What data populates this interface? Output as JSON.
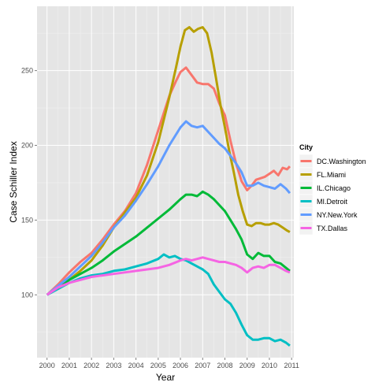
{
  "chart_data": {
    "type": "line",
    "xlabel": "Year",
    "ylabel": "Case Schiller Index",
    "xlim": [
      1999.55,
      2011.1
    ],
    "ylim": [
      58,
      293
    ],
    "x_ticks": [
      2000,
      2001,
      2002,
      2003,
      2004,
      2005,
      2006,
      2007,
      2008,
      2009,
      2010,
      2011
    ],
    "x_tick_labels": [
      "2000",
      "2001",
      "2002",
      "2003",
      "2004",
      "2005",
      "2006",
      "2007",
      "2008",
      "2009",
      "2010",
      "2011"
    ],
    "y_ticks": [
      100,
      150,
      200,
      250
    ],
    "y_tick_labels": [
      "100",
      "150",
      "200",
      "250"
    ],
    "grid": true,
    "legend": {
      "title": "City",
      "position": "right"
    },
    "series": [
      {
        "name": "DC.Washington",
        "color": "#F8766D",
        "x": [
          2000,
          2000.5,
          2001,
          2001.5,
          2002,
          2002.5,
          2003,
          2003.5,
          2004,
          2004.5,
          2005,
          2005.5,
          2005.8,
          2006,
          2006.25,
          2006.5,
          2006.75,
          2007,
          2007.25,
          2007.5,
          2007.75,
          2008,
          2008.25,
          2008.5,
          2008.75,
          2009,
          2009.2,
          2009.4,
          2009.6,
          2009.8,
          2010,
          2010.2,
          2010.4,
          2010.6,
          2010.8,
          2010.92
        ],
        "y": [
          100,
          107,
          115,
          122,
          128,
          137,
          147,
          156,
          168,
          187,
          210,
          233,
          243,
          249,
          252,
          247,
          242,
          241,
          241,
          238,
          228,
          220,
          203,
          188,
          176,
          170,
          173,
          177,
          178,
          179,
          181,
          183,
          180,
          185,
          184,
          186
        ]
      },
      {
        "name": "FL.Miami",
        "color": "#B79F00",
        "x": [
          2000,
          2000.5,
          2001,
          2001.5,
          2002,
          2002.5,
          2003,
          2003.5,
          2004,
          2004.5,
          2005,
          2005.5,
          2005.8,
          2006,
          2006.2,
          2006.4,
          2006.6,
          2006.8,
          2007,
          2007.2,
          2007.4,
          2007.6,
          2007.8,
          2008,
          2008.2,
          2008.4,
          2008.6,
          2008.8,
          2009,
          2009.2,
          2009.4,
          2009.6,
          2009.8,
          2010,
          2010.2,
          2010.4,
          2010.6,
          2010.8,
          2010.92
        ],
        "y": [
          100,
          105,
          110,
          116,
          123,
          133,
          145,
          155,
          165,
          180,
          202,
          232,
          252,
          266,
          277,
          279,
          276,
          278,
          279,
          275,
          262,
          245,
          227,
          212,
          196,
          182,
          167,
          156,
          147,
          146,
          148,
          148,
          147,
          147,
          148,
          147,
          145,
          143,
          142
        ]
      },
      {
        "name": "IL.Chicago",
        "color": "#00BA38",
        "x": [
          2000,
          2000.5,
          2001,
          2001.5,
          2002,
          2002.5,
          2003,
          2003.5,
          2004,
          2004.5,
          2005,
          2005.5,
          2006,
          2006.25,
          2006.5,
          2006.75,
          2007,
          2007.25,
          2007.5,
          2007.75,
          2008,
          2008.25,
          2008.5,
          2008.75,
          2009,
          2009.25,
          2009.5,
          2009.75,
          2010,
          2010.25,
          2010.5,
          2010.75,
          2010.92
        ],
        "y": [
          100,
          105,
          110,
          114,
          118,
          123,
          129,
          134,
          139,
          145,
          151,
          157,
          164,
          167,
          167,
          166,
          169,
          167,
          164,
          160,
          156,
          150,
          144,
          137,
          127,
          124,
          128,
          126,
          126,
          122,
          121,
          118,
          116
        ]
      },
      {
        "name": "MI.Detroit",
        "color": "#00BFC4",
        "x": [
          2000,
          2000.5,
          2001,
          2001.5,
          2002,
          2002.5,
          2003,
          2003.5,
          2004,
          2004.5,
          2005,
          2005.25,
          2005.5,
          2005.75,
          2006,
          2006.25,
          2006.5,
          2006.75,
          2007,
          2007.25,
          2007.5,
          2007.75,
          2008,
          2008.25,
          2008.5,
          2008.75,
          2009,
          2009.25,
          2009.5,
          2009.75,
          2010,
          2010.25,
          2010.5,
          2010.75,
          2010.92
        ],
        "y": [
          100,
          104,
          108,
          111,
          113,
          114,
          116,
          117,
          119,
          121,
          124,
          127,
          125,
          126,
          124,
          123,
          121,
          119,
          117,
          114,
          107,
          102,
          97,
          94,
          88,
          80,
          73,
          70,
          70,
          71,
          71,
          69,
          70,
          68,
          66
        ]
      },
      {
        "name": "NY.New.York",
        "color": "#619CFF",
        "x": [
          2000,
          2000.5,
          2001,
          2001.5,
          2002,
          2002.5,
          2003,
          2003.5,
          2004,
          2004.5,
          2005,
          2005.5,
          2006,
          2006.25,
          2006.5,
          2006.75,
          2007,
          2007.25,
          2007.5,
          2007.75,
          2008,
          2008.25,
          2008.5,
          2008.75,
          2009,
          2009.25,
          2009.5,
          2009.75,
          2010,
          2010.25,
          2010.5,
          2010.75,
          2010.92
        ],
        "y": [
          100,
          106,
          112,
          119,
          126,
          135,
          145,
          153,
          163,
          174,
          186,
          200,
          212,
          216,
          213,
          212,
          213,
          209,
          205,
          201,
          198,
          193,
          188,
          182,
          173,
          173,
          175,
          173,
          172,
          171,
          174,
          171,
          168
        ]
      },
      {
        "name": "TX.Dallas",
        "color": "#F564E3",
        "x": [
          2000,
          2000.5,
          2001,
          2001.5,
          2002,
          2002.5,
          2003,
          2003.5,
          2004,
          2004.5,
          2005,
          2005.5,
          2006,
          2006.25,
          2006.5,
          2006.75,
          2007,
          2007.25,
          2007.5,
          2007.75,
          2008,
          2008.25,
          2008.5,
          2008.75,
          2009,
          2009.25,
          2009.5,
          2009.75,
          2010,
          2010.25,
          2010.5,
          2010.75,
          2010.92
        ],
        "y": [
          100,
          105,
          108,
          110,
          112,
          113,
          114,
          115,
          116,
          117,
          118,
          120,
          123,
          124,
          123,
          124,
          125,
          124,
          123,
          122,
          122,
          121,
          120,
          118,
          115,
          118,
          119,
          118,
          120,
          120,
          118,
          116,
          115
        ]
      }
    ]
  }
}
